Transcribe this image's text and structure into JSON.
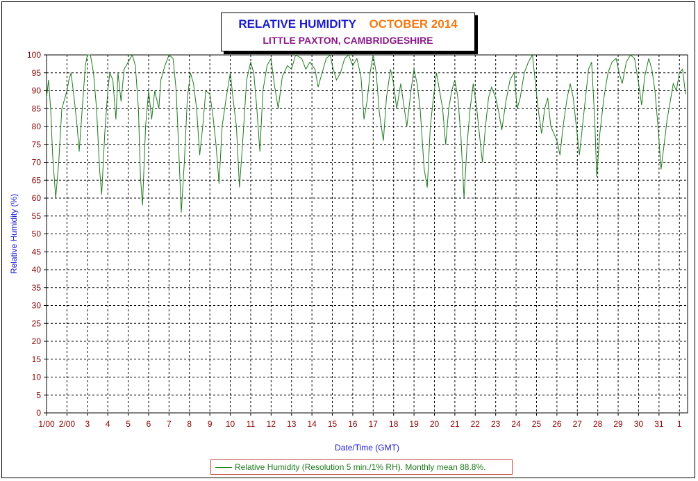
{
  "title": {
    "main": "RELATIVE HUMIDITY",
    "period": "OCTOBER 2014",
    "location": "LITTLE PAXTON, CAMBRIDGESHIRE"
  },
  "colors": {
    "line": "#1e7a1e",
    "title_main": "#1a1acc",
    "title_period": "#f07a14",
    "title_location": "#8a1a8a",
    "ticks": "#8b0000",
    "axis_labels": "#1a1acc"
  },
  "chart_data": {
    "type": "line",
    "ylabel": "Relative Humidity (%)",
    "xlabel": "Date/Time (GMT)",
    "ylim": [
      0,
      100
    ],
    "xlim": [
      0,
      31.4
    ],
    "y_ticks": [
      0,
      5,
      10,
      15,
      20,
      25,
      30,
      35,
      40,
      45,
      50,
      55,
      60,
      65,
      70,
      75,
      80,
      85,
      90,
      95,
      100
    ],
    "x_ticks": [
      {
        "x": 0,
        "label": "1/00"
      },
      {
        "x": 1,
        "label": "2/00"
      },
      {
        "x": 2,
        "label": "3"
      },
      {
        "x": 3,
        "label": "4"
      },
      {
        "x": 4,
        "label": "5"
      },
      {
        "x": 5,
        "label": "6"
      },
      {
        "x": 6,
        "label": "7"
      },
      {
        "x": 7,
        "label": "8"
      },
      {
        "x": 8,
        "label": "9"
      },
      {
        "x": 9,
        "label": "10"
      },
      {
        "x": 10,
        "label": "11"
      },
      {
        "x": 11,
        "label": "12"
      },
      {
        "x": 12,
        "label": "13"
      },
      {
        "x": 13,
        "label": "14"
      },
      {
        "x": 14,
        "label": "15"
      },
      {
        "x": 15,
        "label": "16"
      },
      {
        "x": 16,
        "label": "17"
      },
      {
        "x": 17,
        "label": "18"
      },
      {
        "x": 18,
        "label": "19"
      },
      {
        "x": 19,
        "label": "20"
      },
      {
        "x": 20,
        "label": "21"
      },
      {
        "x": 21,
        "label": "22"
      },
      {
        "x": 22,
        "label": "23"
      },
      {
        "x": 23,
        "label": "24"
      },
      {
        "x": 24,
        "label": "25"
      },
      {
        "x": 25,
        "label": "26"
      },
      {
        "x": 26,
        "label": "27"
      },
      {
        "x": 27,
        "label": "28"
      },
      {
        "x": 28,
        "label": "29"
      },
      {
        "x": 29,
        "label": "30"
      },
      {
        "x": 30,
        "label": "31"
      },
      {
        "x": 31,
        "label": "1"
      }
    ],
    "grid": true,
    "series": [
      {
        "name": "Relative Humidity (Resolution 5 min./1% RH). Monthly mean 88.8%.",
        "points": [
          [
            0,
            88
          ],
          [
            0.1,
            93
          ],
          [
            0.2,
            85
          ],
          [
            0.3,
            72
          ],
          [
            0.45,
            60
          ],
          [
            0.6,
            70
          ],
          [
            0.75,
            85
          ],
          [
            0.9,
            88
          ],
          [
            1.0,
            90
          ],
          [
            1.1,
            93
          ],
          [
            1.2,
            95
          ],
          [
            1.35,
            88
          ],
          [
            1.5,
            80
          ],
          [
            1.6,
            73
          ],
          [
            1.75,
            85
          ],
          [
            1.9,
            97
          ],
          [
            2.0,
            100
          ],
          [
            2.15,
            100
          ],
          [
            2.3,
            95
          ],
          [
            2.45,
            85
          ],
          [
            2.6,
            68
          ],
          [
            2.7,
            61
          ],
          [
            2.85,
            78
          ],
          [
            3.0,
            90
          ],
          [
            3.1,
            95
          ],
          [
            3.25,
            93
          ],
          [
            3.4,
            82
          ],
          [
            3.5,
            95
          ],
          [
            3.65,
            87
          ],
          [
            3.8,
            96
          ],
          [
            4.0,
            98
          ],
          [
            4.2,
            100
          ],
          [
            4.35,
            97
          ],
          [
            4.5,
            85
          ],
          [
            4.6,
            66
          ],
          [
            4.7,
            58
          ],
          [
            4.85,
            80
          ],
          [
            5.0,
            90
          ],
          [
            5.15,
            82
          ],
          [
            5.3,
            90
          ],
          [
            5.5,
            85
          ],
          [
            5.6,
            93
          ],
          [
            5.8,
            97
          ],
          [
            6.0,
            100
          ],
          [
            6.2,
            99
          ],
          [
            6.35,
            90
          ],
          [
            6.5,
            70
          ],
          [
            6.6,
            56
          ],
          [
            6.75,
            70
          ],
          [
            6.9,
            88
          ],
          [
            7.05,
            95
          ],
          [
            7.2,
            92
          ],
          [
            7.35,
            85
          ],
          [
            7.5,
            72
          ],
          [
            7.65,
            80
          ],
          [
            7.8,
            90
          ],
          [
            8.0,
            89
          ],
          [
            8.15,
            83
          ],
          [
            8.3,
            75
          ],
          [
            8.45,
            64
          ],
          [
            8.6,
            80
          ],
          [
            8.8,
            88
          ],
          [
            9.0,
            95
          ],
          [
            9.15,
            87
          ],
          [
            9.3,
            80
          ],
          [
            9.45,
            63
          ],
          [
            9.6,
            75
          ],
          [
            9.8,
            93
          ],
          [
            10.0,
            98
          ],
          [
            10.15,
            95
          ],
          [
            10.3,
            85
          ],
          [
            10.45,
            73
          ],
          [
            10.6,
            90
          ],
          [
            10.8,
            97
          ],
          [
            11.0,
            99
          ],
          [
            11.15,
            92
          ],
          [
            11.35,
            85
          ],
          [
            11.55,
            94
          ],
          [
            11.8,
            97
          ],
          [
            12.0,
            96
          ],
          [
            12.2,
            100
          ],
          [
            12.5,
            99
          ],
          [
            12.7,
            96
          ],
          [
            12.9,
            98
          ],
          [
            13.15,
            96
          ],
          [
            13.3,
            91
          ],
          [
            13.5,
            95
          ],
          [
            13.7,
            99
          ],
          [
            13.9,
            100
          ],
          [
            14.0,
            97
          ],
          [
            14.2,
            93
          ],
          [
            14.4,
            95
          ],
          [
            14.6,
            99
          ],
          [
            14.8,
            100
          ],
          [
            15.0,
            97
          ],
          [
            15.2,
            99
          ],
          [
            15.4,
            94
          ],
          [
            15.55,
            82
          ],
          [
            15.7,
            87
          ],
          [
            15.85,
            95
          ],
          [
            16.0,
            100
          ],
          [
            16.15,
            95
          ],
          [
            16.3,
            84
          ],
          [
            16.5,
            76
          ],
          [
            16.65,
            88
          ],
          [
            16.85,
            96
          ],
          [
            17.0,
            92
          ],
          [
            17.15,
            85
          ],
          [
            17.35,
            92
          ],
          [
            17.5,
            86
          ],
          [
            17.65,
            80
          ],
          [
            17.85,
            90
          ],
          [
            18.0,
            96
          ],
          [
            18.15,
            92
          ],
          [
            18.3,
            85
          ],
          [
            18.5,
            68
          ],
          [
            18.65,
            63
          ],
          [
            18.8,
            80
          ],
          [
            18.95,
            88
          ],
          [
            19.1,
            95
          ],
          [
            19.25,
            90
          ],
          [
            19.4,
            85
          ],
          [
            19.55,
            75
          ],
          [
            19.7,
            85
          ],
          [
            19.85,
            90
          ],
          [
            20.0,
            93
          ],
          [
            20.15,
            88
          ],
          [
            20.3,
            77
          ],
          [
            20.45,
            60
          ],
          [
            20.6,
            75
          ],
          [
            20.75,
            85
          ],
          [
            20.9,
            92
          ],
          [
            21.05,
            86
          ],
          [
            21.2,
            78
          ],
          [
            21.35,
            70
          ],
          [
            21.5,
            80
          ],
          [
            21.65,
            88
          ],
          [
            21.8,
            91
          ],
          [
            22.0,
            88
          ],
          [
            22.15,
            84
          ],
          [
            22.3,
            79
          ],
          [
            22.5,
            87
          ],
          [
            22.7,
            93
          ],
          [
            22.9,
            95
          ],
          [
            23.05,
            85
          ],
          [
            23.2,
            88
          ],
          [
            23.4,
            95
          ],
          [
            23.6,
            98
          ],
          [
            23.8,
            100
          ],
          [
            23.95,
            92
          ],
          [
            24.1,
            84
          ],
          [
            24.25,
            78
          ],
          [
            24.4,
            85
          ],
          [
            24.55,
            88
          ],
          [
            24.7,
            80
          ],
          [
            24.85,
            78
          ],
          [
            25.0,
            76
          ],
          [
            25.15,
            72
          ],
          [
            25.3,
            80
          ],
          [
            25.5,
            88
          ],
          [
            25.65,
            92
          ],
          [
            25.8,
            88
          ],
          [
            25.95,
            80
          ],
          [
            26.1,
            72
          ],
          [
            26.25,
            80
          ],
          [
            26.4,
            88
          ],
          [
            26.55,
            96
          ],
          [
            26.7,
            98
          ],
          [
            26.85,
            82
          ],
          [
            26.95,
            66
          ],
          [
            27.1,
            78
          ],
          [
            27.3,
            88
          ],
          [
            27.5,
            95
          ],
          [
            27.7,
            98
          ],
          [
            27.9,
            99
          ],
          [
            28.05,
            95
          ],
          [
            28.2,
            92
          ],
          [
            28.4,
            98
          ],
          [
            28.6,
            100
          ],
          [
            28.8,
            99
          ],
          [
            29.0,
            92
          ],
          [
            29.15,
            86
          ],
          [
            29.3,
            94
          ],
          [
            29.5,
            99
          ],
          [
            29.65,
            96
          ],
          [
            29.8,
            90
          ],
          [
            29.95,
            80
          ],
          [
            30.1,
            68
          ],
          [
            30.25,
            75
          ],
          [
            30.4,
            82
          ],
          [
            30.55,
            87
          ],
          [
            30.7,
            92
          ],
          [
            30.85,
            90
          ],
          [
            31.0,
            95
          ],
          [
            31.15,
            96
          ],
          [
            31.3,
            89
          ]
        ]
      }
    ]
  },
  "legend": {
    "label": "Relative Humidity (Resolution 5 min./1% RH). Monthly mean 88.8%."
  }
}
